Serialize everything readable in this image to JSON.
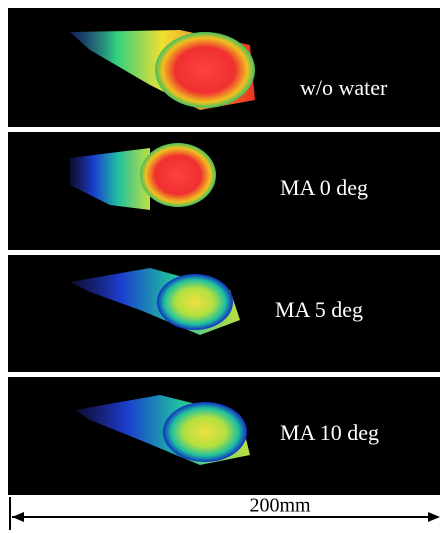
{
  "panels": [
    {
      "label": "w/o water"
    },
    {
      "label": "MA 0 deg"
    },
    {
      "label": "MA 5 deg"
    },
    {
      "label": "MA 10 deg"
    }
  ],
  "scale": {
    "label": "200mm"
  }
}
